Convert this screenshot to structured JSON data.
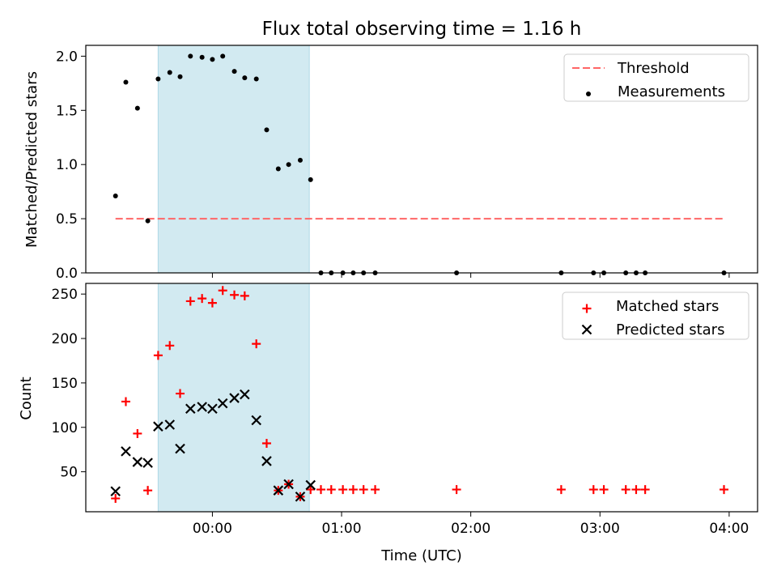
{
  "chart_data": [
    {
      "type": "scatter",
      "title": "Flux total observing time = 1.16 h",
      "xlabel": "",
      "ylabel": "Matched/Predicted stars",
      "x_unit": "hours after 00:00 UTC",
      "xlim": [
        -0.98,
        4.22
      ],
      "ylim": [
        0,
        2.1
      ],
      "yticks": [
        0.0,
        0.5,
        1.0,
        1.5,
        2.0
      ],
      "ytick_labels": [
        "0.0",
        "0.5",
        "1.0",
        "1.5",
        "2.0"
      ],
      "shaded_span": [
        -0.42,
        0.75
      ],
      "legend_position": "upper right",
      "legend": [
        "Threshold",
        "Measurements"
      ],
      "threshold": {
        "name": "Threshold",
        "value": 0.5,
        "x_range": [
          -0.75,
          3.97
        ],
        "color": "#ff6666"
      },
      "series": [
        {
          "name": "Measurements",
          "color": "#000000",
          "x": [
            -0.75,
            -0.67,
            -0.58,
            -0.5,
            -0.42,
            -0.33,
            -0.25,
            -0.17,
            -0.08,
            0.0,
            0.08,
            0.17,
            0.25,
            0.34,
            0.42,
            0.51,
            0.59,
            0.68,
            0.76,
            0.84,
            0.92,
            1.01,
            1.09,
            1.17,
            1.26,
            1.89,
            2.7,
            2.95,
            3.03,
            3.2,
            3.28,
            3.35,
            3.96
          ],
          "y": [
            0.71,
            1.76,
            1.52,
            0.48,
            1.79,
            1.85,
            1.81,
            2.0,
            1.99,
            1.97,
            2.0,
            1.86,
            1.8,
            1.79,
            1.32,
            0.96,
            1.0,
            1.04,
            0.86,
            0,
            0,
            0,
            0,
            0,
            0,
            0,
            0,
            0,
            0,
            0,
            0,
            0,
            0
          ]
        }
      ]
    },
    {
      "type": "scatter",
      "title": "",
      "xlabel": "Time (UTC)",
      "ylabel": "Count",
      "x_unit": "hours after 00:00 UTC",
      "xlim": [
        -0.98,
        4.22
      ],
      "ylim": [
        5,
        262
      ],
      "yticks": [
        50,
        100,
        150,
        200,
        250
      ],
      "ytick_labels": [
        "50",
        "100",
        "150",
        "200",
        "250"
      ],
      "xticks": [
        0,
        1,
        2,
        3,
        4
      ],
      "xtick_labels": [
        "00:00",
        "01:00",
        "02:00",
        "03:00",
        "04:00"
      ],
      "shaded_span": [
        -0.42,
        0.75
      ],
      "legend_position": "upper right",
      "legend": [
        "Matched stars",
        "Predicted stars"
      ],
      "series": [
        {
          "name": "Matched stars",
          "marker": "+",
          "color": "#ff0000",
          "x": [
            -0.75,
            -0.67,
            -0.58,
            -0.5,
            -0.42,
            -0.33,
            -0.25,
            -0.17,
            -0.08,
            0.0,
            0.08,
            0.17,
            0.25,
            0.34,
            0.42,
            0.51,
            0.59,
            0.68,
            0.76,
            0.84,
            0.92,
            1.01,
            1.09,
            1.17,
            1.26,
            1.89,
            2.7,
            2.95,
            3.03,
            3.2,
            3.28,
            3.35,
            3.96
          ],
          "y": [
            20,
            129,
            93,
            29,
            181,
            192,
            138,
            242,
            245,
            240,
            254,
            249,
            248,
            194,
            82,
            29,
            36,
            22,
            30,
            30,
            30,
            30,
            30,
            30,
            30,
            30,
            30,
            30,
            30,
            30,
            30,
            30,
            30
          ]
        },
        {
          "name": "Predicted stars",
          "marker": "x",
          "color": "#000000",
          "x": [
            -0.75,
            -0.67,
            -0.58,
            -0.5,
            -0.42,
            -0.33,
            -0.25,
            -0.17,
            -0.08,
            0.0,
            0.08,
            0.17,
            0.25,
            0.34,
            0.42,
            0.51,
            0.59,
            0.68,
            0.76
          ],
          "y": [
            28,
            73,
            61,
            60,
            101,
            103,
            76,
            121,
            123,
            121,
            127,
            133,
            137,
            108,
            62,
            29,
            36,
            22,
            35
          ]
        }
      ]
    }
  ]
}
